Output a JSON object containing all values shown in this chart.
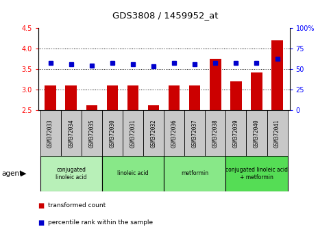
{
  "title": "GDS3808 / 1459952_at",
  "samples": [
    "GSM372033",
    "GSM372034",
    "GSM372035",
    "GSM372030",
    "GSM372031",
    "GSM372032",
    "GSM372036",
    "GSM372037",
    "GSM372038",
    "GSM372039",
    "GSM372040",
    "GSM372041"
  ],
  "bar_values": [
    3.1,
    3.1,
    2.62,
    3.1,
    3.1,
    2.62,
    3.1,
    3.1,
    3.75,
    3.2,
    3.42,
    4.2
  ],
  "dot_values": [
    57,
    56,
    54,
    57,
    56,
    53,
    57,
    56,
    57,
    57,
    57,
    62
  ],
  "bar_color": "#cc0000",
  "dot_color": "#0000cc",
  "ylim_left": [
    2.5,
    4.5
  ],
  "ylim_right": [
    0,
    100
  ],
  "yticks_left": [
    2.5,
    3.0,
    3.5,
    4.0,
    4.5
  ],
  "yticks_right": [
    0,
    25,
    50,
    75,
    100
  ],
  "ytick_labels_right": [
    "0",
    "25",
    "50",
    "75",
    "100%"
  ],
  "grid_values": [
    3.0,
    3.5,
    4.0
  ],
  "groups": [
    {
      "label": "conjugated\nlinoleic acid",
      "start": 0,
      "end": 3,
      "color": "#b8f0b8"
    },
    {
      "label": "linoleic acid",
      "start": 3,
      "end": 6,
      "color": "#88e888"
    },
    {
      "label": "metformin",
      "start": 6,
      "end": 9,
      "color": "#88e888"
    },
    {
      "label": "conjugated linoleic acid\n+ metformin",
      "start": 9,
      "end": 12,
      "color": "#55dd55"
    }
  ],
  "agent_label": "agent",
  "legend_bar_label": "transformed count",
  "legend_dot_label": "percentile rank within the sample",
  "sample_box_color": "#c8c8c8",
  "plot_bg": "#ffffff"
}
